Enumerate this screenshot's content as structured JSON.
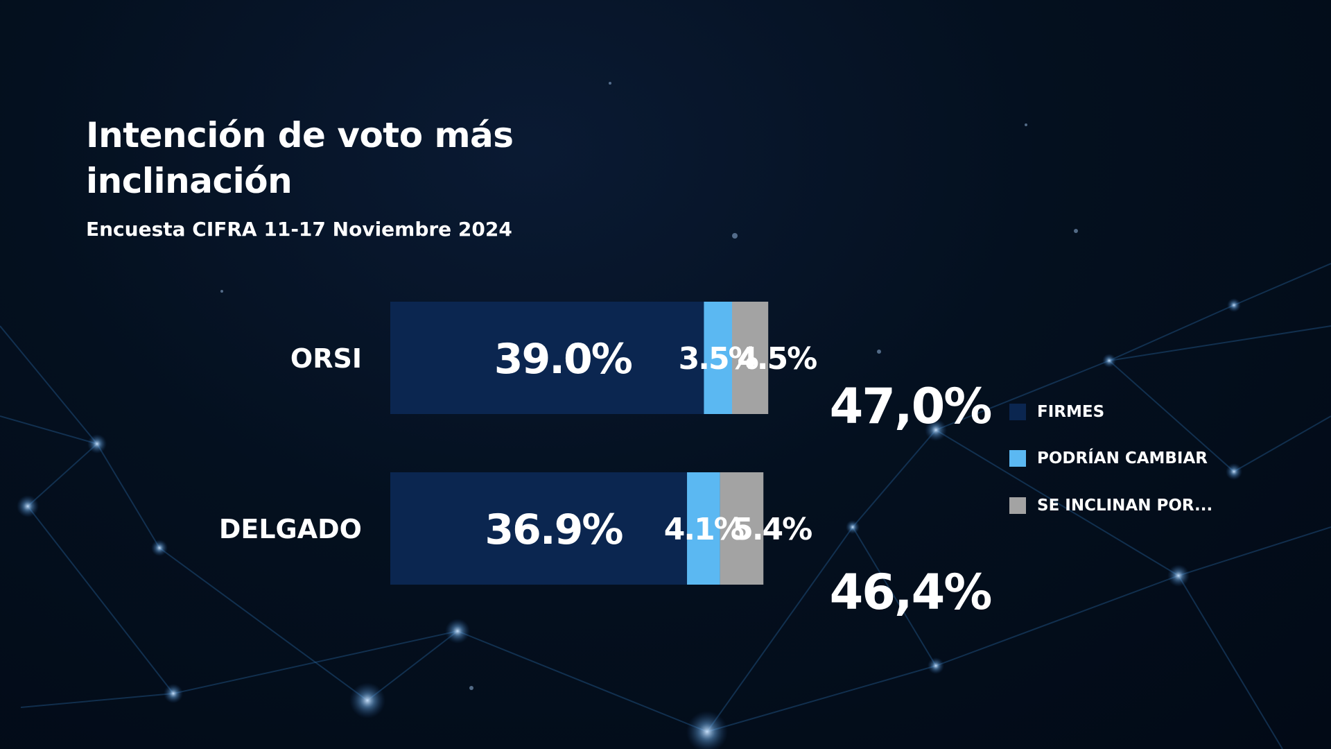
{
  "colors": {
    "firmes": "#0b2650",
    "podrian_cambiar": "#5bb8f2",
    "se_inclinan": "#a3a3a3",
    "text": "#ffffff"
  },
  "chart_data": {
    "type": "bar",
    "orientation": "horizontal",
    "stacked": true,
    "title": "Intención de voto más inclinación",
    "subtitle": "Encuesta CIFRA 11-17 Noviembre 2024",
    "categories": [
      "ORSI",
      "DELGADO"
    ],
    "series": [
      {
        "name": "FIRMES",
        "values": [
          39.0,
          36.9
        ],
        "labels": [
          "39.0%",
          "36.9%"
        ]
      },
      {
        "name": "PODRÍAN CAMBIAR",
        "values": [
          3.5,
          4.1
        ],
        "labels": [
          "3.5%",
          "4.1%"
        ]
      },
      {
        "name": "SE INCLINAN POR...",
        "values": [
          4.5,
          5.4
        ],
        "labels": [
          "4.5%",
          "5.4%"
        ]
      }
    ],
    "totals": [
      "47,0%",
      "46,4%"
    ],
    "legend_position": "right",
    "grid": false
  }
}
